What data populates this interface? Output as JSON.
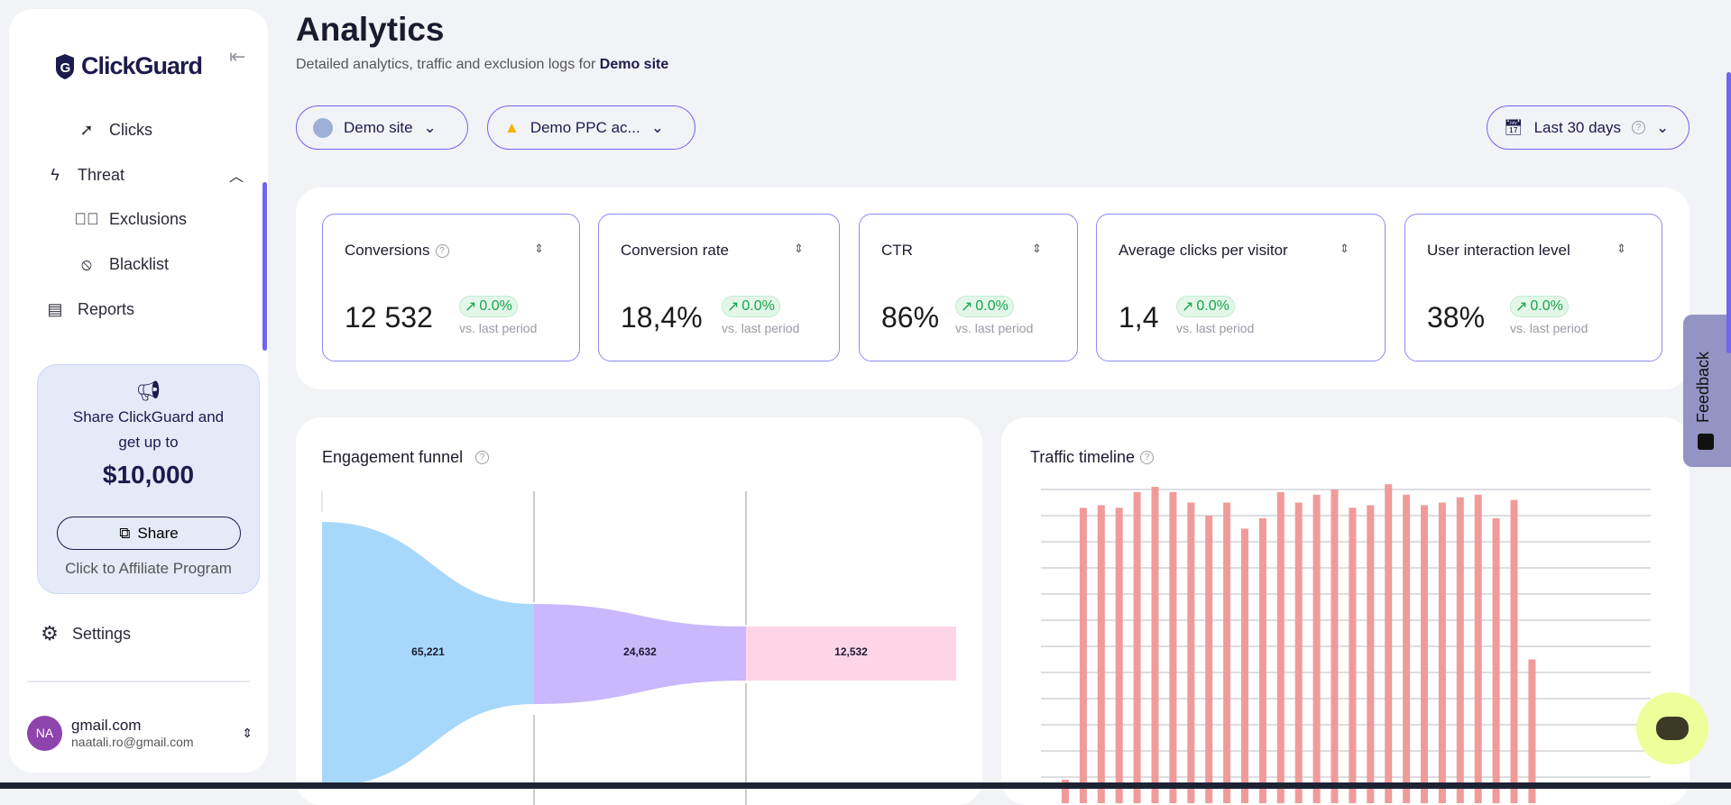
{
  "sidebar": {
    "brand": "ClickGuard",
    "items": [
      {
        "label": "Clicks",
        "icon": "cursor-click-icon"
      },
      {
        "label": "Threat",
        "icon": "lightning-icon"
      },
      {
        "label": "Exclusions",
        "icon": "check-badge-icon"
      },
      {
        "label": "Blacklist",
        "icon": "ban-icon"
      },
      {
        "label": "Reports",
        "icon": "document-icon"
      }
    ],
    "promo": {
      "line1": "Share ClickGuard and",
      "line2": "get up to",
      "amount": "$10,000",
      "button": "Share",
      "link": "Click to Affiliate Program"
    },
    "settings": "Settings",
    "user": {
      "initials": "NA",
      "name": "gmail.com",
      "email": "naatali.ro@gmail.com",
      "avatar_color": "#8e44ad"
    }
  },
  "header": {
    "title": "Analytics",
    "subtitle": "Detailed analytics, traffic and exclusion logs for ",
    "site": "Demo site"
  },
  "filters": {
    "site": "Demo site",
    "account": "Demo PPC ac...",
    "date": "Last 30 days"
  },
  "kpis": [
    {
      "label": "Conversions",
      "value": "12 532",
      "change": "0.0%",
      "vs": "vs. last period",
      "help": true
    },
    {
      "label": "Conversion rate",
      "value": "18,4%",
      "change": "0.0%",
      "vs": "vs. last period"
    },
    {
      "label": "CTR",
      "value": "86%",
      "change": "0.0%",
      "vs": "vs. last period"
    },
    {
      "label": "Average clicks per visitor",
      "value": "1,4",
      "change": "0.0%",
      "vs": "vs. last period"
    },
    {
      "label": "User interaction level",
      "value": "38%",
      "change": "0.0%",
      "vs": "vs. last period"
    }
  ],
  "funnel": {
    "title": "Engagement funnel",
    "stages": [
      "65,221",
      "24,632",
      "12,532"
    ],
    "colors": [
      "#a7d8fb",
      "#c9b8fb",
      "#fdd5e6"
    ]
  },
  "chart_data": {
    "type": "bar",
    "title": "Traffic timeline",
    "values": [
      0.9,
      11.3,
      11.4,
      11.3,
      11.9,
      12.1,
      11.9,
      11.5,
      11.0,
      11.5,
      10.5,
      10.9,
      11.9,
      11.5,
      11.8,
      12.0,
      11.3,
      11.4,
      12.2,
      11.8,
      11.4,
      11.5,
      11.7,
      11.8,
      10.9,
      11.6,
      5.5
    ],
    "grid": true,
    "color": "#f19a9a"
  },
  "feedback": "Feedback"
}
